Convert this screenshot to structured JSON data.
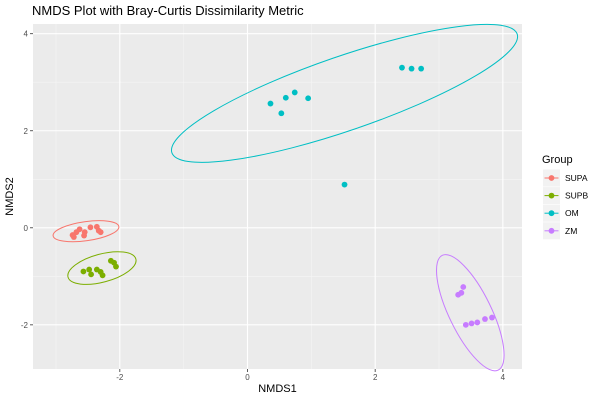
{
  "chart_data": {
    "type": "scatter",
    "title": "NMDS Plot with Bray-Curtis Dissimilarity Metric",
    "xlabel": "NMDS1",
    "ylabel": "NMDS2",
    "xlim": [
      -3.36,
      4.3
    ],
    "ylim": [
      -2.91,
      4.2
    ],
    "x_ticks": [
      -2,
      0,
      2,
      4
    ],
    "y_ticks": [
      -2,
      0,
      2,
      4
    ],
    "x_tick_labels": [
      "-2",
      "0",
      "2",
      "4"
    ],
    "y_tick_labels": [
      "-2",
      "0",
      "2",
      "4"
    ],
    "grid": true,
    "legend": {
      "title": "Group",
      "position": "right"
    },
    "series": [
      {
        "name": "SUPA",
        "color": "#F8766D",
        "points": [
          [
            -2.63,
            -0.03
          ],
          [
            -2.68,
            -0.09
          ],
          [
            -2.55,
            -0.09
          ],
          [
            -2.74,
            -0.15
          ],
          [
            -2.72,
            -0.19
          ],
          [
            -2.56,
            -0.16
          ],
          [
            -2.46,
            0.01
          ],
          [
            -2.36,
            0.02
          ],
          [
            -2.33,
            -0.06
          ],
          [
            -2.3,
            -0.09
          ]
        ],
        "ellipse": {
          "center": [
            -2.53,
            -0.07
          ],
          "rx": 0.52,
          "ry": 0.15,
          "angle_deg": 8
        }
      },
      {
        "name": "SUPB",
        "color": "#7CAE00",
        "points": [
          [
            -2.57,
            -0.9
          ],
          [
            -2.48,
            -0.86
          ],
          [
            -2.45,
            -0.96
          ],
          [
            -2.36,
            -0.86
          ],
          [
            -2.3,
            -0.91
          ],
          [
            -2.27,
            -0.98
          ],
          [
            -2.14,
            -0.68
          ],
          [
            -2.09,
            -0.72
          ],
          [
            -2.06,
            -0.8
          ]
        ],
        "ellipse": {
          "center": [
            -2.28,
            -0.83
          ],
          "rx": 0.55,
          "ry": 0.22,
          "angle_deg": 15
        }
      },
      {
        "name": "OM",
        "color": "#00BFC4",
        "points": [
          [
            0.36,
            2.56
          ],
          [
            0.53,
            2.36
          ],
          [
            0.6,
            2.68
          ],
          [
            0.74,
            2.79
          ],
          [
            0.95,
            2.67
          ],
          [
            1.52,
            0.89
          ],
          [
            2.42,
            3.3
          ],
          [
            2.57,
            3.28
          ],
          [
            2.72,
            3.28
          ]
        ],
        "ellipse": {
          "center": [
            1.52,
            2.77
          ],
          "rx": 2.86,
          "ry": 0.58,
          "angle_deg": 19
        }
      },
      {
        "name": "ZM",
        "color": "#C77CFF",
        "points": [
          [
            3.3,
            -1.38
          ],
          [
            3.35,
            -1.34
          ],
          [
            3.38,
            -1.22
          ],
          [
            3.42,
            -2.0
          ],
          [
            3.51,
            -1.97
          ],
          [
            3.6,
            -1.95
          ],
          [
            3.72,
            -1.88
          ],
          [
            3.83,
            -1.85
          ]
        ],
        "ellipse": {
          "center": [
            3.49,
            -1.75
          ],
          "rx": 1.0,
          "ry": 0.33,
          "angle_deg": -64
        }
      }
    ]
  }
}
